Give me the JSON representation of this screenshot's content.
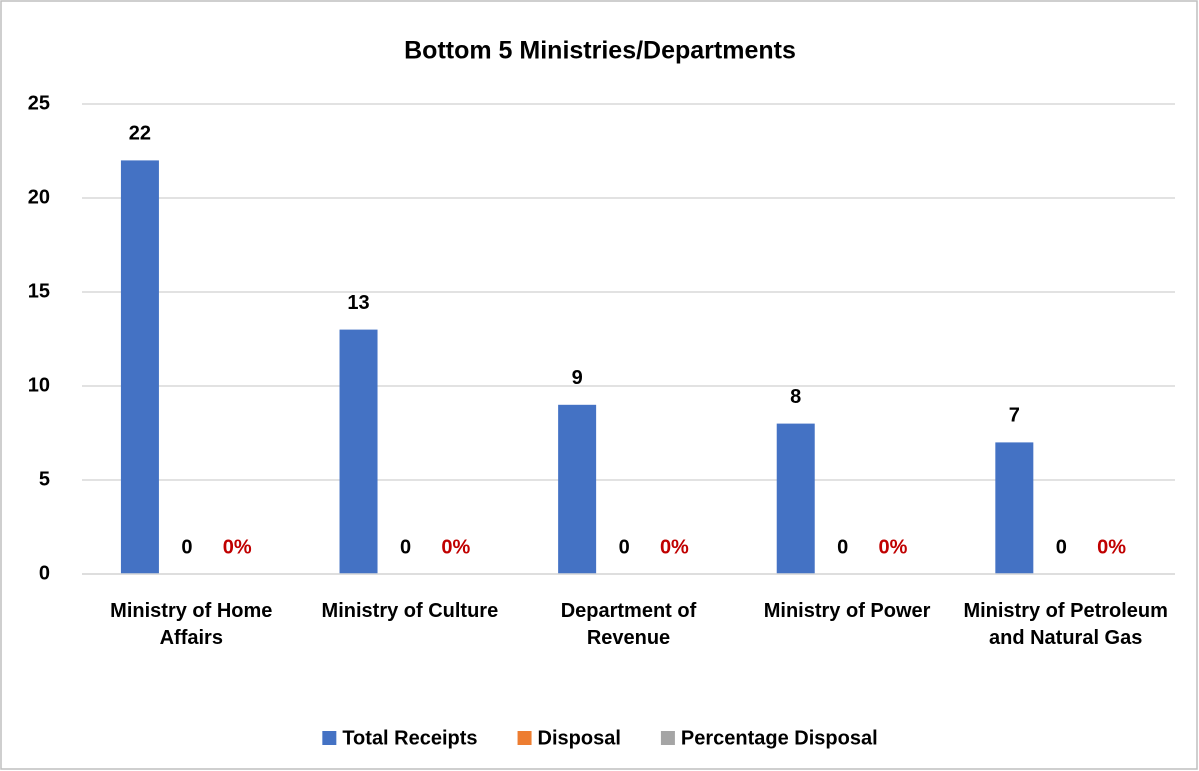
{
  "chart_data": {
    "type": "bar",
    "title": "Bottom 5 Ministries/Departments",
    "categories": [
      "Ministry of Home Affairs",
      "Ministry of Culture",
      "Department of Revenue",
      "Ministry of Power",
      "Ministry of Petroleum and Natural Gas"
    ],
    "series": [
      {
        "name": "Total Receipts",
        "color": "#4472c4",
        "values": [
          22,
          13,
          9,
          8,
          7
        ]
      },
      {
        "name": "Disposal",
        "color": "#ed7d31",
        "values": [
          0,
          0,
          0,
          0,
          0
        ]
      },
      {
        "name": "Percentage Disposal",
        "color": "#a5a5a5",
        "values": [
          0,
          0,
          0,
          0,
          0
        ],
        "value_labels": [
          "0%",
          "0%",
          "0%",
          "0%",
          "0%"
        ],
        "label_color": "#c00000"
      }
    ],
    "ylim": [
      0,
      25
    ],
    "yticks": [
      0,
      5,
      10,
      15,
      20,
      25
    ],
    "grid": true,
    "legend": "bottom"
  }
}
